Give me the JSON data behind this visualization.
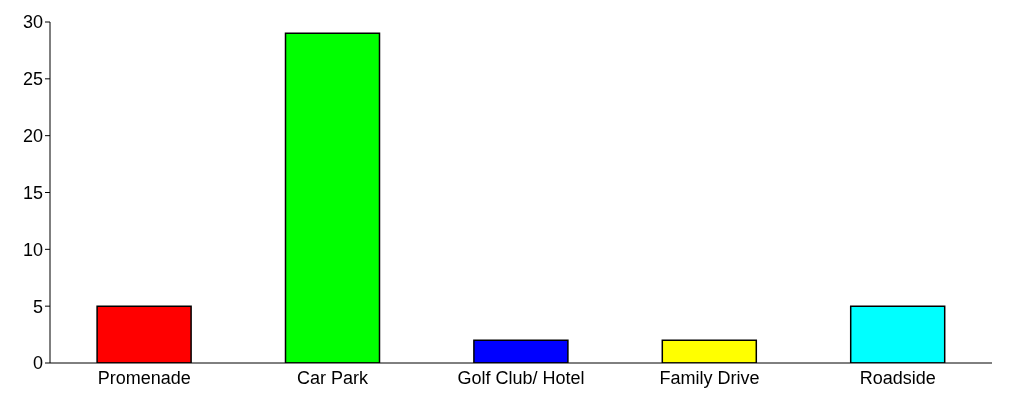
{
  "chart_data": {
    "type": "bar",
    "categories": [
      "Promenade",
      "Car Park",
      "Golf Club/ Hotel",
      "Family Drive",
      "Roadside"
    ],
    "values": [
      5,
      29,
      2,
      2,
      5
    ],
    "colors": [
      "#ff0000",
      "#00ff00",
      "#0000ff",
      "#ffff00",
      "#00ffff"
    ],
    "ylim": [
      0,
      30
    ],
    "yticks": [
      0,
      5,
      10,
      15,
      20,
      25,
      30
    ],
    "grid": false,
    "legend": false
  }
}
